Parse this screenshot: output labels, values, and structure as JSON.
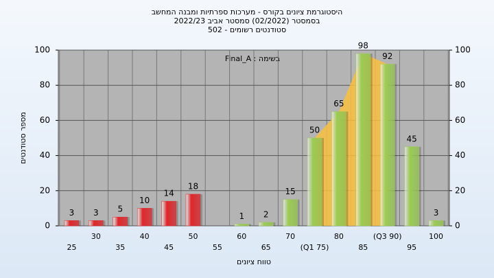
{
  "chart_data": {
    "type": "bar",
    "title": [
      "היסטוגרמת ציונים בקורס - מערכות ספרתיות ומבנה המחשב",
      "בסמסטר  (02/2022)  סמסטר אביב 2022/23",
      "סטודנטים רשומים - 502"
    ],
    "annotation": "Final_A : בשימה",
    "x_label": "טווח ציונים",
    "y_label": "מספר סטודנטים",
    "categories": [
      "25",
      "30",
      "35",
      "40",
      "45",
      "50",
      "55",
      "60",
      "65",
      "70",
      "(Q1 75)",
      "80",
      "85",
      "(Q3 90)",
      "95",
      "100"
    ],
    "values": [
      3,
      3,
      5,
      10,
      14,
      18,
      null,
      1,
      2,
      15,
      50,
      65,
      98,
      92,
      45,
      3
    ],
    "colors": [
      "#e0262b",
      "#e0262b",
      "#e0262b",
      "#e0262b",
      "#e0262b",
      "#e0262b",
      null,
      "#9ccc55",
      "#9ccc55",
      "#9ccc55",
      "#9ccc55",
      "#9ccc55",
      "#9ccc55",
      "#9ccc55",
      "#9ccc55",
      "#9ccc55"
    ],
    "highlight_color": "#f8c040",
    "ylim": [
      0,
      100
    ],
    "yticks": [
      0,
      20,
      40,
      60,
      80,
      100
    ],
    "y2lim": [
      0,
      100
    ],
    "y2ticks": [
      0,
      20,
      40,
      60,
      80,
      100
    ]
  }
}
